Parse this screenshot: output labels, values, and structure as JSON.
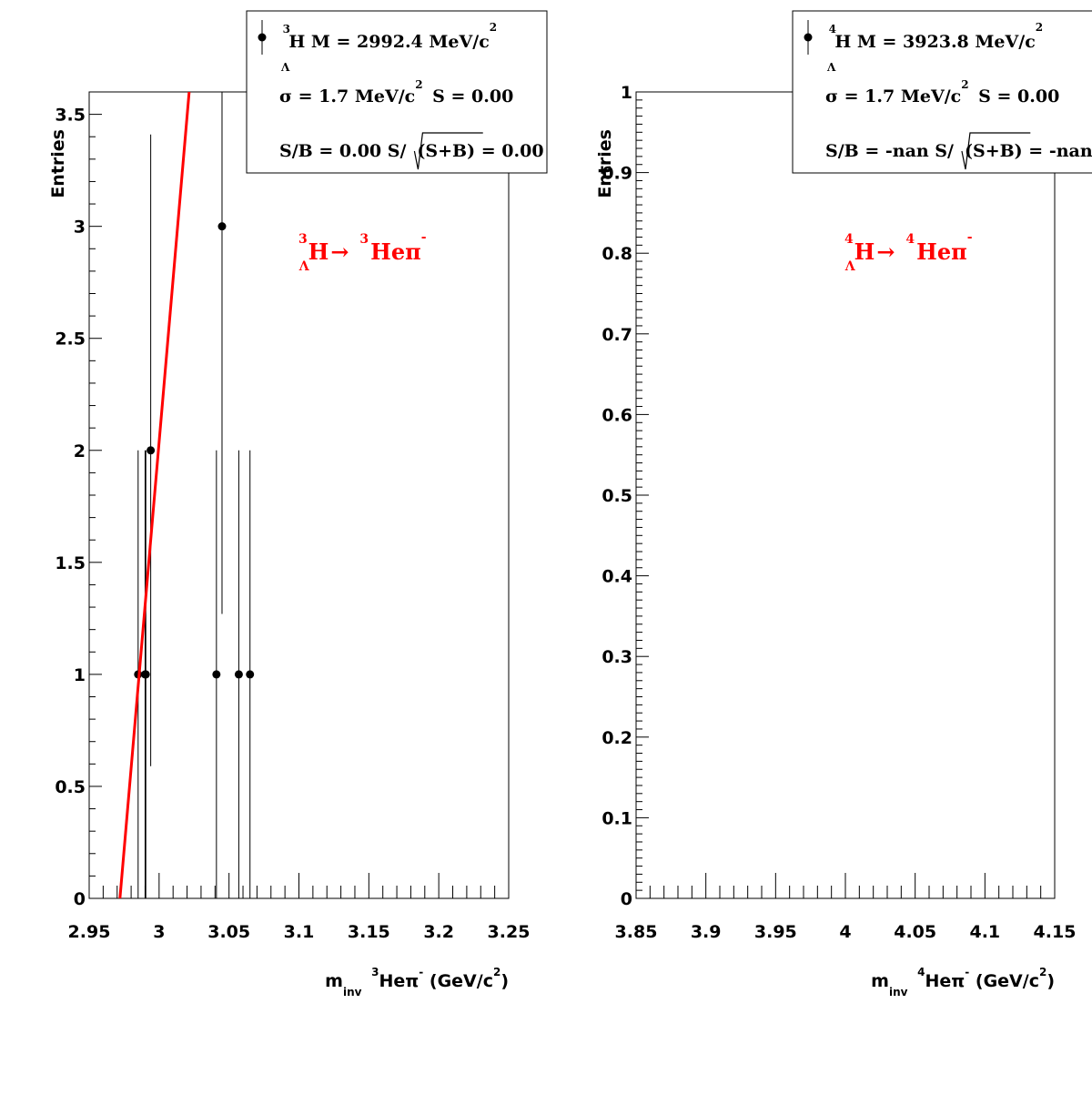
{
  "chart_data": [
    {
      "type": "scatter",
      "xlabel_parts": {
        "main": "m",
        "sub": "inv",
        "iso": "3",
        "particle": "Heπ",
        "charge": "-",
        "units": "(GeV/c",
        "units_exp": "2",
        "units_close": ")"
      },
      "ylabel": "Entries",
      "xlim": [
        2.95,
        3.25
      ],
      "ylim": [
        0,
        3.6
      ],
      "x_ticks": [
        "2.95",
        "3",
        "3.05",
        "3.1",
        "3.15",
        "3.2",
        "3.25"
      ],
      "y_ticks": [
        "0",
        "0.5",
        "1",
        "1.5",
        "2",
        "2.5",
        "3",
        "3.5"
      ],
      "series": [
        {
          "points": [
            {
              "x": 2.985,
              "y": 1,
              "err": 1
            },
            {
              "x": 2.99,
              "y": 1,
              "err": 1
            },
            {
              "x": 2.9905,
              "y": 1,
              "err": 1
            },
            {
              "x": 2.994,
              "y": 2,
              "err": 1.41
            },
            {
              "x": 3.041,
              "y": 1,
              "err": 1
            },
            {
              "x": 3.045,
              "y": 3,
              "err": 1.73
            },
            {
              "x": 3.057,
              "y": 1,
              "err": 1
            },
            {
              "x": 3.065,
              "y": 1,
              "err": 1
            }
          ]
        }
      ],
      "fit_line": {
        "color": "#ff0000",
        "x": [
          2.972,
          3.0215
        ],
        "y": [
          0,
          3.6
        ]
      },
      "legend": {
        "line1": {
          "iso": "3",
          "sub": "Λ",
          "text": "H M = 2992.4 MeV/c",
          "exp": "2"
        },
        "line2": {
          "text_a": "σ = 1.7 MeV/c",
          "exp": "2",
          "text_b": "S = 0.00"
        },
        "line3": {
          "text_a": "S/B = 0.00  S/",
          "radicand": "(S+B)",
          "text_b": "= 0.00"
        }
      },
      "decay_label": {
        "iso1": "3",
        "sub": "Λ",
        "h": "H",
        "arrow": "→",
        "iso2": "3",
        "he": "Heπ",
        "charge": "-"
      }
    },
    {
      "type": "scatter",
      "xlabel_parts": {
        "main": "m",
        "sub": "inv",
        "iso": "4",
        "particle": "Heπ",
        "charge": "-",
        "units": "(GeV/c",
        "units_exp": "2",
        "units_close": ")"
      },
      "ylabel": "Entries",
      "xlim": [
        3.85,
        4.15
      ],
      "ylim": [
        0,
        1
      ],
      "x_ticks": [
        "3.85",
        "3.9",
        "3.95",
        "4",
        "4.05",
        "4.1",
        "4.15"
      ],
      "y_ticks": [
        "0",
        "0.1",
        "0.2",
        "0.3",
        "0.4",
        "0.5",
        "0.6",
        "0.7",
        "0.8",
        "0.9",
        "1"
      ],
      "series": [
        {
          "points": []
        }
      ],
      "legend": {
        "line1": {
          "iso": "4",
          "sub": "Λ",
          "text": "H M = 3923.8 MeV/c",
          "exp": "2"
        },
        "line2": {
          "text_a": "σ = 1.7 MeV/c",
          "exp": "2",
          "text_b": "S = 0.00"
        },
        "line3": {
          "text_a": "S/B = -nan  S/",
          "radicand": "(S+B)",
          "text_b": "= -nan"
        }
      },
      "decay_label": {
        "iso1": "4",
        "sub": "Λ",
        "h": "H",
        "arrow": "→",
        "iso2": "4",
        "he": "Heπ",
        "charge": "-"
      }
    }
  ]
}
